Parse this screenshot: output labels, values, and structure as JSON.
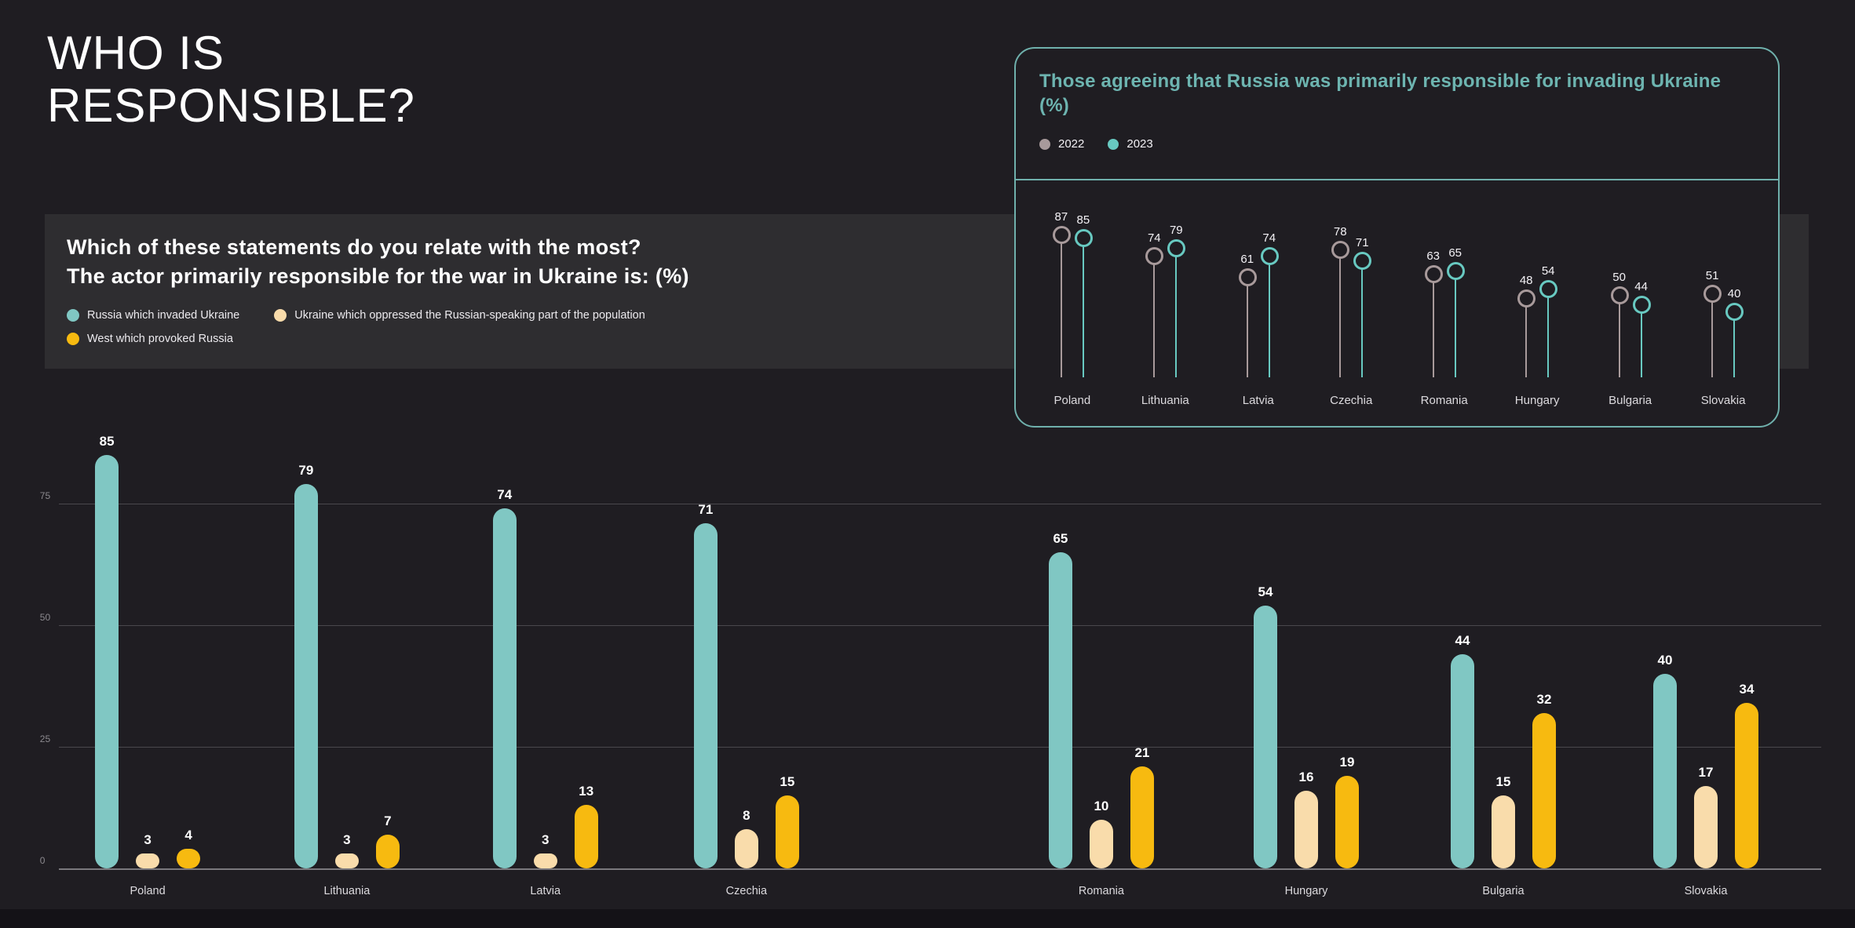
{
  "page": {
    "title": "WHO IS RESPONSIBLE?"
  },
  "question_panel": {
    "question_line1": "Which of these statements do you relate with the most?",
    "question_line2": "The actor primarily responsible for the war in Ukraine is: (%)",
    "legend": [
      {
        "label": "Russia which invaded Ukraine",
        "color": "#80c7c3"
      },
      {
        "label": "Ukraine which oppressed the Russian-speaking part of the population",
        "color": "#f9dcab"
      },
      {
        "label": "West which provoked Russia",
        "color": "#f7ba10"
      }
    ]
  },
  "inset_panel": {
    "title": "Those agreeing that Russia was primarily responsible for invading Ukraine (%)",
    "accent_color": "#6fb0ac",
    "legend": [
      {
        "label": "2022",
        "color": "#a89a9b"
      },
      {
        "label": "2023",
        "color": "#68c9c1"
      }
    ]
  },
  "chart_data": [
    {
      "type": "bar",
      "title": "The actor primarily responsible for the war in Ukraine is: (%)",
      "categories": [
        "Poland",
        "Lithuania",
        "Latvia",
        "Czechia",
        "Romania",
        "Hungary",
        "Bulgaria",
        "Slovakia"
      ],
      "series": [
        {
          "name": "Russia which invaded Ukraine",
          "color": "#80c7c3",
          "values": [
            85,
            79,
            74,
            71,
            65,
            54,
            44,
            40
          ]
        },
        {
          "name": "Ukraine which oppressed the Russian-speaking part of the population",
          "color": "#f9dcab",
          "values": [
            3,
            3,
            3,
            8,
            10,
            16,
            15,
            17
          ]
        },
        {
          "name": "West which provoked Russia",
          "color": "#f7ba10",
          "values": [
            4,
            7,
            13,
            15,
            21,
            19,
            32,
            34
          ]
        }
      ],
      "yticks": [
        0,
        25,
        50,
        75
      ],
      "ylim": [
        0,
        95
      ],
      "grid": true,
      "legend_position": "top",
      "category_x_percent": [
        7.96,
        18.7,
        29.4,
        40.24,
        59.37,
        70.42,
        81.04,
        91.96
      ]
    },
    {
      "type": "lollipop",
      "title": "Those agreeing that Russia was primarily responsible for invading Ukraine (%)",
      "categories": [
        "Poland",
        "Lithuania",
        "Latvia",
        "Czechia",
        "Romania",
        "Hungary",
        "Bulgaria",
        "Slovakia"
      ],
      "series": [
        {
          "name": "2022",
          "color": "#a89a9b",
          "values": [
            87,
            74,
            61,
            78,
            63,
            48,
            50,
            51
          ]
        },
        {
          "name": "2023",
          "color": "#68c9c1",
          "values": [
            85,
            79,
            74,
            71,
            65,
            54,
            44,
            40
          ]
        }
      ],
      "ylim": [
        0,
        100
      ],
      "grid": false,
      "legend_position": "top"
    }
  ]
}
